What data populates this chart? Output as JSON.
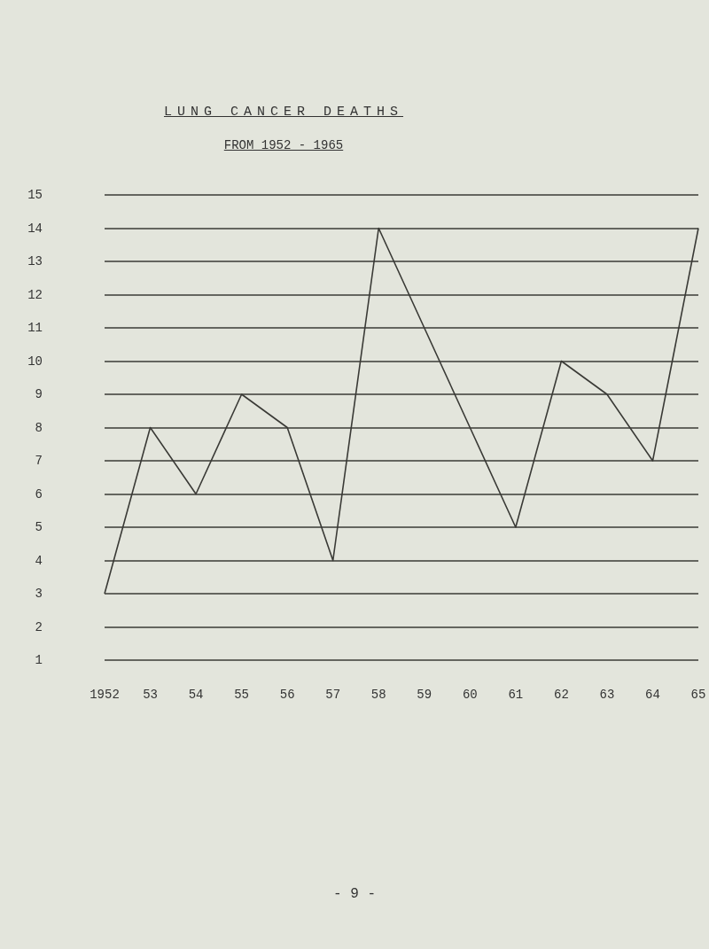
{
  "chart_data": {
    "type": "line",
    "title": "LUNG CANCER DEATHS",
    "subtitle": "FROM 1952 - 1965",
    "categories": [
      "1952",
      "53",
      "54",
      "55",
      "56",
      "57",
      "58",
      "59",
      "60",
      "61",
      "62",
      "63",
      "64",
      "65"
    ],
    "series": [
      {
        "color": "#3a3a36",
        "values": [
          3,
          8,
          6,
          9,
          8,
          4,
          14,
          11,
          8,
          5,
          10,
          9,
          7,
          14
        ]
      }
    ],
    "ylim": [
      1,
      15
    ],
    "yticks": [
      1,
      2,
      3,
      4,
      5,
      6,
      7,
      8,
      9,
      10,
      11,
      12,
      13,
      14,
      15
    ],
    "grid": "y",
    "marker": "none",
    "line_style": "solid",
    "annotations": [
      "- 9 -"
    ]
  }
}
